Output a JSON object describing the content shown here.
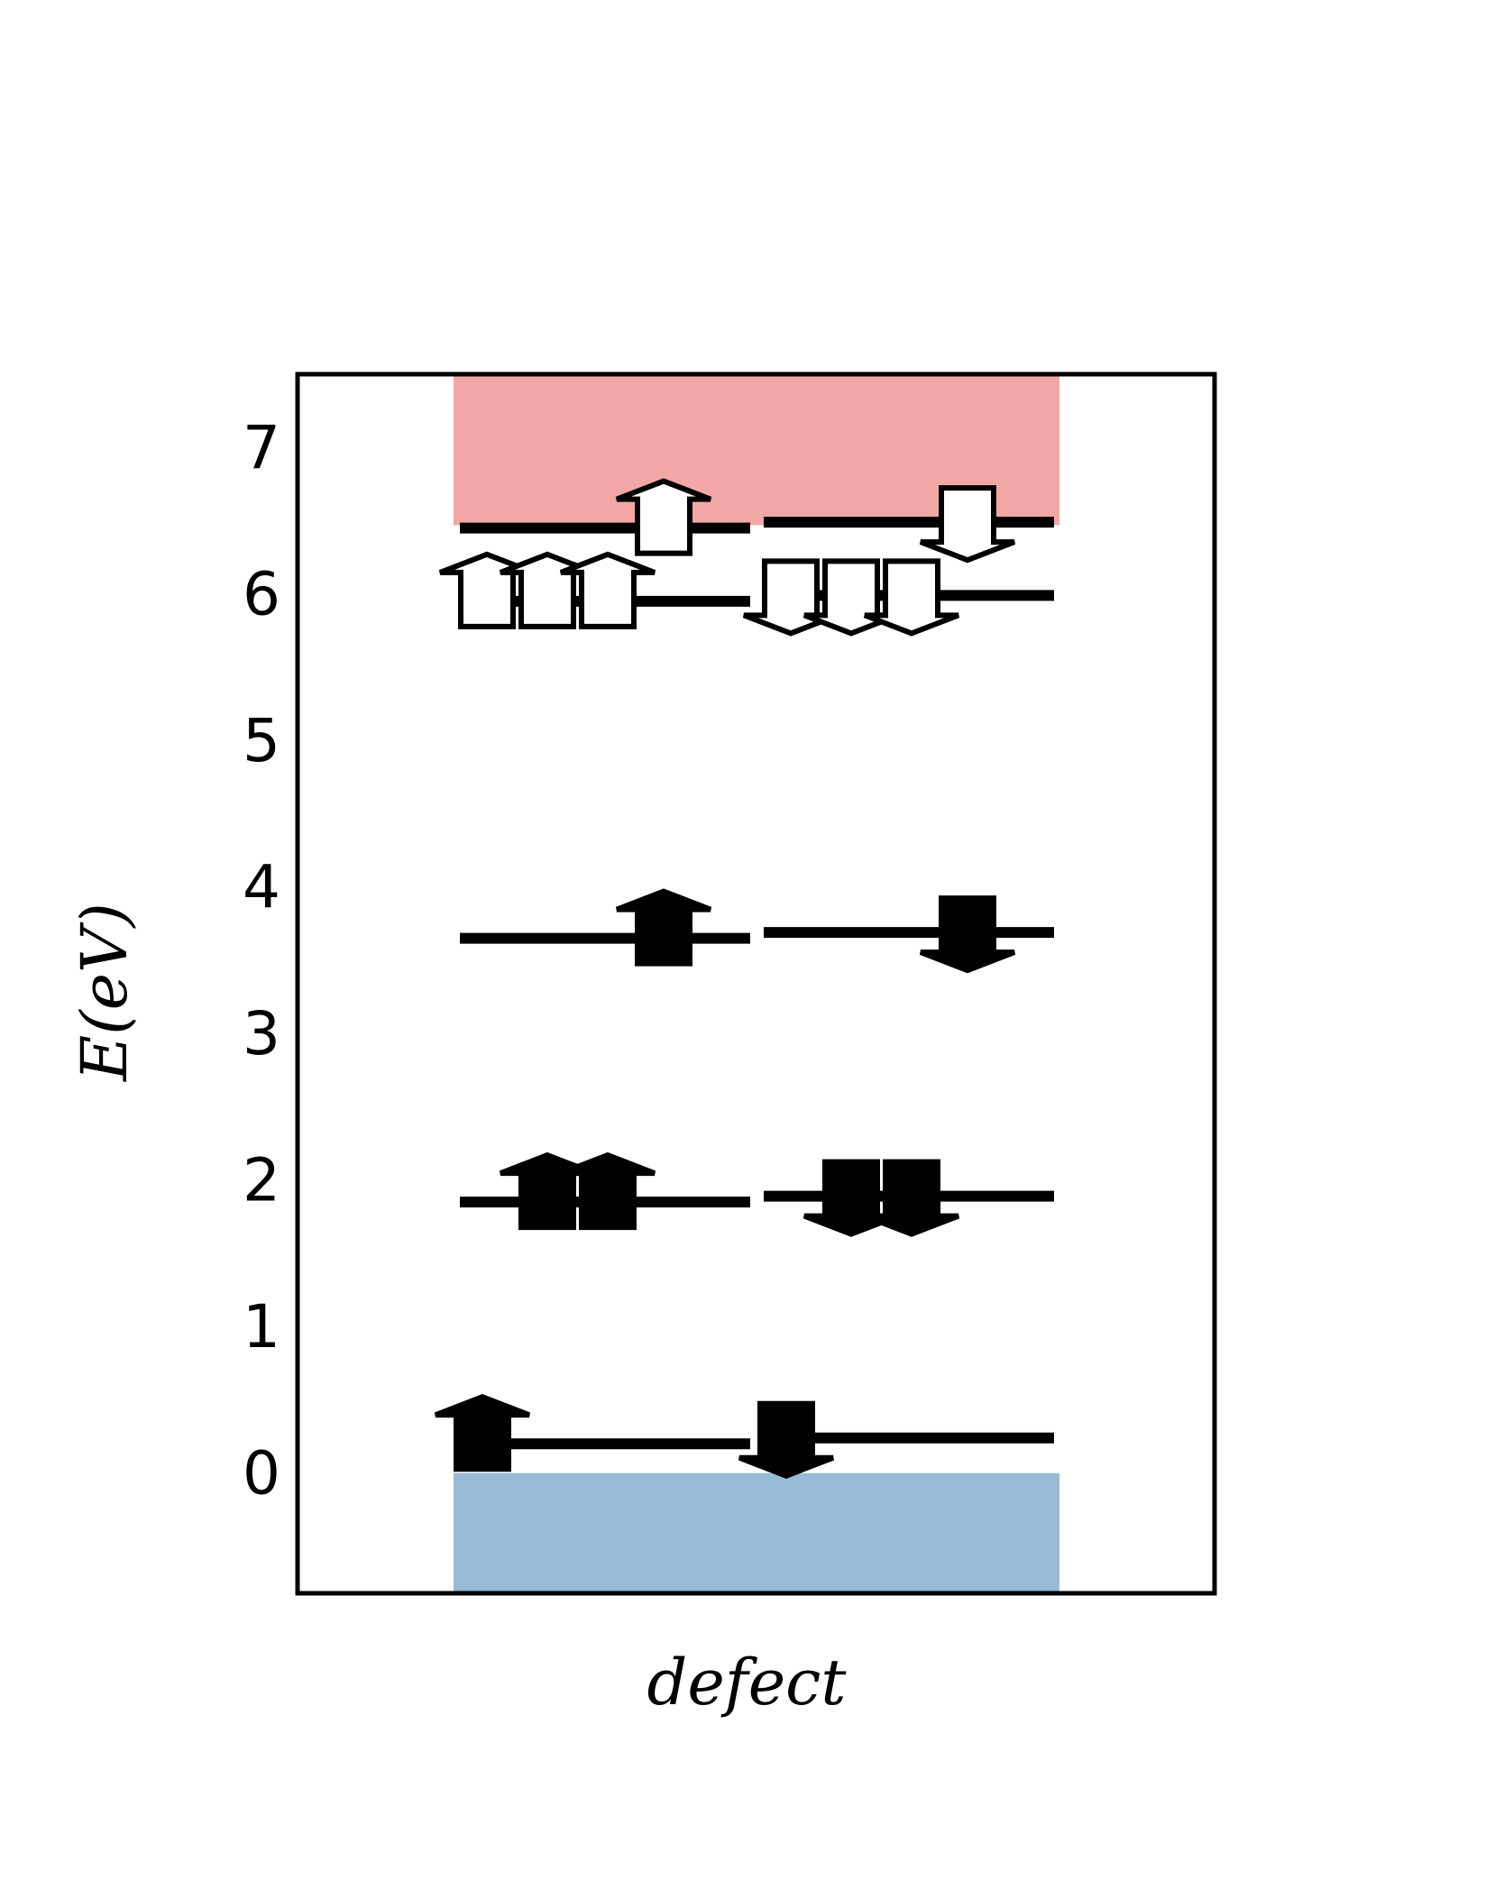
{
  "chart_data": {
    "type": "energy-level-diagram",
    "xlabel": "defect",
    "ylabel": "E(eV)",
    "ylim": [
      -0.82,
      7.5
    ],
    "yticks": [
      0,
      1,
      2,
      3,
      4,
      5,
      6,
      7
    ],
    "bands": [
      {
        "name": "conduction band",
        "from": 6.47,
        "to": 7.5,
        "color": "#f2a7a7"
      },
      {
        "name": "valence band",
        "from": -0.82,
        "to": 0.0,
        "color": "#97bad5"
      }
    ],
    "levels": {
      "spin_up": [
        {
          "energy": 0.2,
          "electrons": 1,
          "occupied": true
        },
        {
          "energy": 1.85,
          "electrons": 2,
          "occupied": true
        },
        {
          "energy": 3.65,
          "electrons": 1,
          "occupied": true
        },
        {
          "energy": 5.95,
          "electrons": 3,
          "occupied": false
        },
        {
          "energy": 6.45,
          "electrons": 1,
          "occupied": false
        }
      ],
      "spin_down": [
        {
          "energy": 0.24,
          "electrons": 1,
          "occupied": true
        },
        {
          "energy": 1.89,
          "electrons": 2,
          "occupied": true
        },
        {
          "energy": 3.69,
          "electrons": 1,
          "occupied": true
        },
        {
          "energy": 5.99,
          "electrons": 3,
          "occupied": false
        },
        {
          "energy": 6.49,
          "electrons": 1,
          "occupied": false
        }
      ]
    },
    "colors": {
      "occupied": "#000000",
      "unoccupied": "#ffffff",
      "frame": "#000000"
    }
  }
}
